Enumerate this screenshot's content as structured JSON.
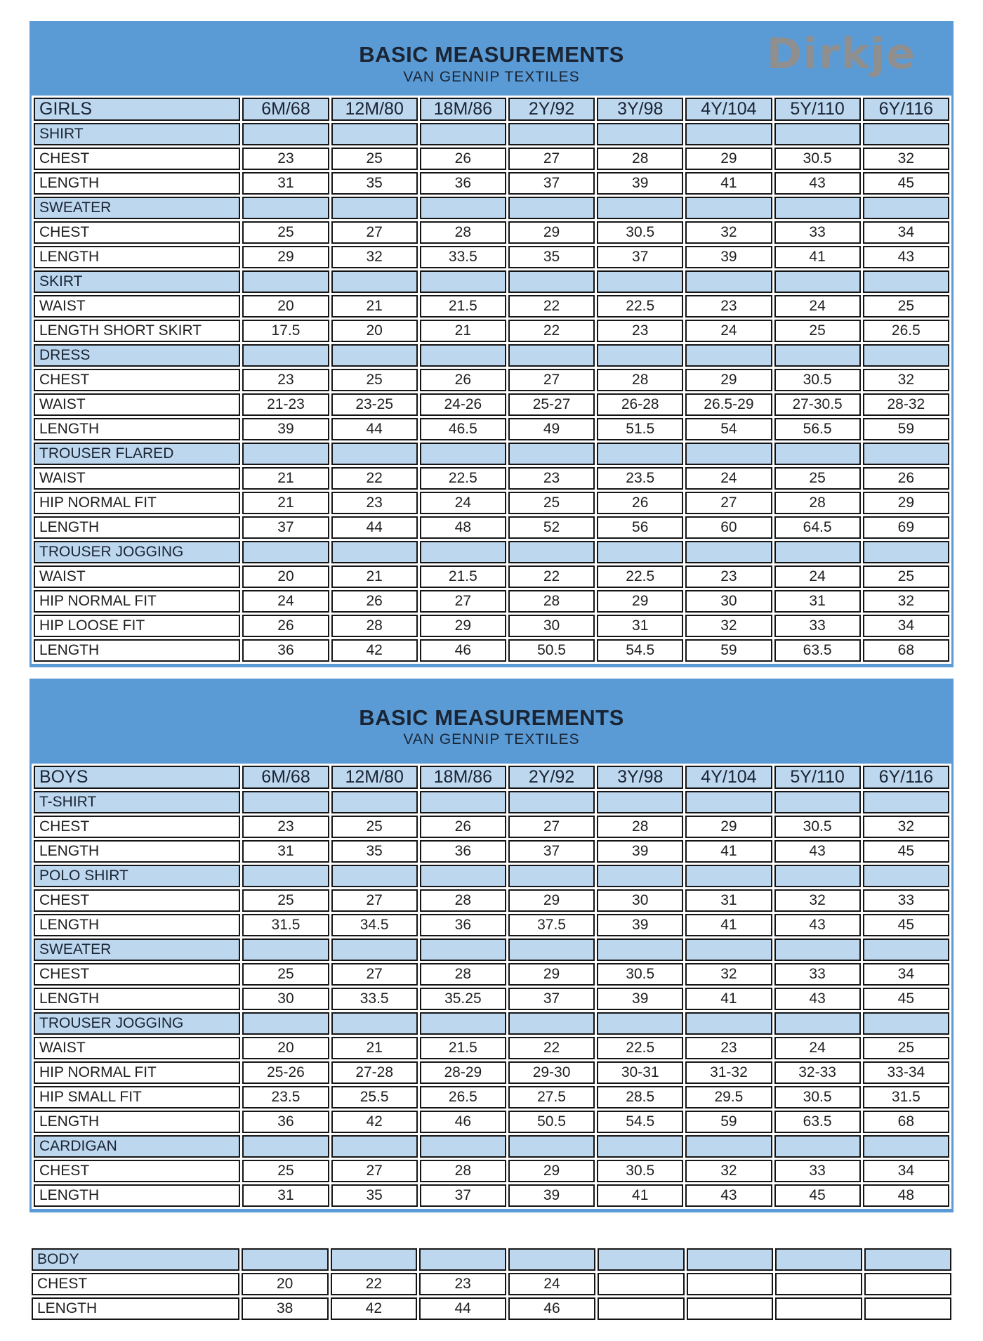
{
  "colors": {
    "page_bg": "#ffffff",
    "panel_blue": "#5b9bd5",
    "section_blue": "#bdd7ee",
    "cell_white": "#ffffff",
    "border_black": "#151515",
    "title_navy": "#1a2433",
    "text_dark": "#202020",
    "logo_gray": "#8f8f8f"
  },
  "logo": {
    "text": "Dirkje"
  },
  "panels": [
    {
      "title": "BASIC MEASUREMENTS",
      "subtitle": "VAN GENNIP TEXTILES"
    },
    {
      "title": "BASIC MEASUREMENTS",
      "subtitle": "VAN GENNIP TEXTILES"
    }
  ],
  "tables": [
    {
      "name": "girls-measurements",
      "header": [
        "GIRLS",
        "6M/68",
        "12M/80",
        "18M/86",
        "2Y/92",
        "3Y/98",
        "4Y/104",
        "5Y/110",
        "6Y/116"
      ],
      "rows": [
        {
          "type": "section",
          "label": "SHIRT"
        },
        {
          "type": "data",
          "label": "CHEST",
          "values": [
            "23",
            "25",
            "26",
            "27",
            "28",
            "29",
            "30.5",
            "32"
          ]
        },
        {
          "type": "data",
          "label": "LENGTH",
          "values": [
            "31",
            "35",
            "36",
            "37",
            "39",
            "41",
            "43",
            "45"
          ]
        },
        {
          "type": "section",
          "label": "SWEATER"
        },
        {
          "type": "data",
          "label": "CHEST",
          "values": [
            "25",
            "27",
            "28",
            "29",
            "30.5",
            "32",
            "33",
            "34"
          ]
        },
        {
          "type": "data",
          "label": "LENGTH",
          "values": [
            "29",
            "32",
            "33.5",
            "35",
            "37",
            "39",
            "41",
            "43"
          ]
        },
        {
          "type": "section",
          "label": "SKIRT"
        },
        {
          "type": "data",
          "label": "WAIST",
          "values": [
            "20",
            "21",
            "21.5",
            "22",
            "22.5",
            "23",
            "24",
            "25"
          ]
        },
        {
          "type": "data",
          "label": "LENGTH SHORT SKIRT",
          "values": [
            "17.5",
            "20",
            "21",
            "22",
            "23",
            "24",
            "25",
            "26.5"
          ]
        },
        {
          "type": "section",
          "label": "DRESS"
        },
        {
          "type": "data",
          "label": "CHEST",
          "values": [
            "23",
            "25",
            "26",
            "27",
            "28",
            "29",
            "30.5",
            "32"
          ]
        },
        {
          "type": "data",
          "label": "WAIST",
          "values": [
            "21-23",
            "23-25",
            "24-26",
            "25-27",
            "26-28",
            "26.5-29",
            "27-30.5",
            "28-32"
          ]
        },
        {
          "type": "data",
          "label": "LENGTH",
          "values": [
            "39",
            "44",
            "46.5",
            "49",
            "51.5",
            "54",
            "56.5",
            "59"
          ]
        },
        {
          "type": "section",
          "label": "TROUSER FLARED"
        },
        {
          "type": "data",
          "label": "WAIST",
          "values": [
            "21",
            "22",
            "22.5",
            "23",
            "23.5",
            "24",
            "25",
            "26"
          ]
        },
        {
          "type": "data",
          "label": "HIP NORMAL FIT",
          "values": [
            "21",
            "23",
            "24",
            "25",
            "26",
            "27",
            "28",
            "29"
          ]
        },
        {
          "type": "data",
          "label": "LENGTH",
          "values": [
            "37",
            "44",
            "48",
            "52",
            "56",
            "60",
            "64.5",
            "69"
          ]
        },
        {
          "type": "section",
          "label": "TROUSER JOGGING"
        },
        {
          "type": "data",
          "label": "WAIST",
          "values": [
            "20",
            "21",
            "21.5",
            "22",
            "22.5",
            "23",
            "24",
            "25"
          ]
        },
        {
          "type": "data",
          "label": "HIP NORMAL FIT",
          "values": [
            "24",
            "26",
            "27",
            "28",
            "29",
            "30",
            "31",
            "32"
          ]
        },
        {
          "type": "data",
          "label": "HIP LOOSE FIT",
          "values": [
            "26",
            "28",
            "29",
            "30",
            "31",
            "32",
            "33",
            "34"
          ]
        },
        {
          "type": "data",
          "label": "LENGTH",
          "values": [
            "36",
            "42",
            "46",
            "50.5",
            "54.5",
            "59",
            "63.5",
            "68"
          ]
        }
      ]
    },
    {
      "name": "boys-measurements",
      "header": [
        "BOYS",
        "6M/68",
        "12M/80",
        "18M/86",
        "2Y/92",
        "3Y/98",
        "4Y/104",
        "5Y/110",
        "6Y/116"
      ],
      "rows": [
        {
          "type": "section",
          "label": "T-SHIRT"
        },
        {
          "type": "data",
          "label": "CHEST",
          "values": [
            "23",
            "25",
            "26",
            "27",
            "28",
            "29",
            "30.5",
            "32"
          ]
        },
        {
          "type": "data",
          "label": "LENGTH",
          "values": [
            "31",
            "35",
            "36",
            "37",
            "39",
            "41",
            "43",
            "45"
          ]
        },
        {
          "type": "section",
          "label": "POLO SHIRT"
        },
        {
          "type": "data",
          "label": "CHEST",
          "values": [
            "25",
            "27",
            "28",
            "29",
            "30",
            "31",
            "32",
            "33"
          ]
        },
        {
          "type": "data",
          "label": "LENGTH",
          "values": [
            "31.5",
            "34.5",
            "36",
            "37.5",
            "39",
            "41",
            "43",
            "45"
          ]
        },
        {
          "type": "section",
          "label": "SWEATER"
        },
        {
          "type": "data",
          "label": "CHEST",
          "values": [
            "25",
            "27",
            "28",
            "29",
            "30.5",
            "32",
            "33",
            "34"
          ]
        },
        {
          "type": "data",
          "label": "LENGTH",
          "values": [
            "30",
            "33.5",
            "35.25",
            "37",
            "39",
            "41",
            "43",
            "45"
          ]
        },
        {
          "type": "section",
          "label": "TROUSER JOGGING"
        },
        {
          "type": "data",
          "label": "WAIST",
          "values": [
            "20",
            "21",
            "21.5",
            "22",
            "22.5",
            "23",
            "24",
            "25"
          ]
        },
        {
          "type": "data",
          "label": "HIP NORMAL FIT",
          "values": [
            "25-26",
            "27-28",
            "28-29",
            "29-30",
            "30-31",
            "31-32",
            "32-33",
            "33-34"
          ]
        },
        {
          "type": "data",
          "label": "HIP SMALL FIT",
          "values": [
            "23.5",
            "25.5",
            "26.5",
            "27.5",
            "28.5",
            "29.5",
            "30.5",
            "31.5"
          ]
        },
        {
          "type": "data",
          "label": "LENGTH",
          "values": [
            "36",
            "42",
            "46",
            "50.5",
            "54.5",
            "59",
            "63.5",
            "68"
          ]
        },
        {
          "type": "section",
          "label": "CARDIGAN"
        },
        {
          "type": "data",
          "label": "CHEST",
          "values": [
            "25",
            "27",
            "28",
            "29",
            "30.5",
            "32",
            "33",
            "34"
          ]
        },
        {
          "type": "data",
          "label": "LENGTH",
          "values": [
            "31",
            "35",
            "37",
            "39",
            "41",
            "43",
            "45",
            "48"
          ]
        }
      ]
    },
    {
      "name": "body-measurements",
      "header": null,
      "rows": [
        {
          "type": "section",
          "label": "BODY"
        },
        {
          "type": "data",
          "label": "CHEST",
          "values": [
            "20",
            "22",
            "23",
            "24",
            "",
            "",
            "",
            ""
          ]
        },
        {
          "type": "data",
          "label": "LENGTH",
          "values": [
            "38",
            "42",
            "44",
            "46",
            "",
            "",
            "",
            ""
          ]
        }
      ]
    }
  ]
}
